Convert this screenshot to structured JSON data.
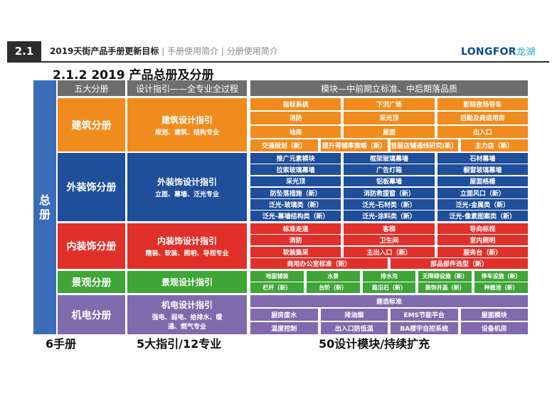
{
  "header": {
    "section_number": "2.1",
    "crumb_active": "2019天街产品手册更新目标",
    "crumb_rest": "| 手册使用简介 | 分册使用简介",
    "logo_text": "LONGFOR",
    "logo_cn": "龙湖",
    "page_title": "2.1.2 2019 产品总册及分册"
  },
  "side_label": "总册",
  "column_headers": [
    "五大分册",
    "设计指引——全专业全过程",
    "模块—中前期立标准、中后期落品质"
  ],
  "colors": {
    "architecture": "#f08c1e",
    "facade": "#1f4e9a",
    "interior": "#e0302a",
    "landscape": "#3fa536",
    "mep": "#7e6aac",
    "header_gray": "#6d6d6d",
    "side_blue": "#3b6cb8"
  },
  "bands": [
    {
      "category": "建筑分册",
      "guide_title": "建筑设计指引",
      "guide_sub": "规划、建筑、结构专业",
      "rows": [
        [
          "指标系统",
          "下沉广场",
          "影院夜场导车"
        ],
        [
          "消防",
          "采光顶",
          "后勤及商运用房"
        ],
        [
          "地库",
          "屋面",
          "出入口"
        ],
        [
          "交通规划（新）",
          "提升得铺率策略（新）",
          "首层店铺通线研究(新）",
          "主力店（新）"
        ]
      ]
    },
    {
      "category": "外装饰分册",
      "guide_title": "外装饰设计指引",
      "guide_sub": "立面、幕墙、泛光专业",
      "rows": [
        [
          "推广元素模块",
          "框架玻璃幕墙",
          "石材幕墙"
        ],
        [
          "拉索玻璃幕墙",
          "广告灯箱",
          "橱窗玻璃幕墙"
        ],
        [
          "采光顶",
          "铝板幕墙",
          "屋面格栅"
        ],
        [
          "防坠落措施（新）",
          "消防救援窗（新）",
          "立面风口（新）"
        ],
        [
          "泛光-玻璃类（新）",
          "泛光-石材类（新）",
          "泛光-金属类（新）"
        ],
        [
          "泛光-幕墙结构类（新）",
          "泛光-涂料类（新）",
          "泛光-像素图案类（新）"
        ]
      ]
    },
    {
      "category": "内装饰分册",
      "guide_title": "内装饰设计指引",
      "guide_sub": "精装、软装、照明、导视专业",
      "rows": [
        [
          "标准走道",
          "客梯",
          "导向标视"
        ],
        [
          "消防",
          "卫生间",
          "室内照明"
        ],
        [
          "软装集采",
          "主出入口（新）",
          "服务台（新）"
        ],
        [
          "商用办公室标准（新）",
          "部品部件选型（新）"
        ]
      ]
    },
    {
      "category": "景观分册",
      "guide_title": "景观设计指引",
      "guide_sub": "",
      "rows": [
        [
          "地面铺装",
          "水景",
          "排水沟",
          "无障碍设施（新）",
          "停车设施（新）"
        ],
        [
          "栏杆（新）",
          "台阶（新）",
          "路沿石（新）",
          "装饰井盖（新）",
          "种植池（新）"
        ]
      ]
    },
    {
      "category": "机电分册",
      "guide_title": "机电设计指引",
      "guide_sub": "强电、弱电、给排水、暖通、燃气专业",
      "rows": [
        [
          "建造标准"
        ],
        [
          "厨房废水",
          "排油烟",
          "EMS节能平台",
          "屋面模块"
        ],
        [
          "温度控制",
          "出入口防低温",
          "BA楼宇自控系统",
          "设备机房"
        ]
      ]
    }
  ],
  "footer": [
    "6手册",
    "5大指引/12专业",
    "50设计模块/持续扩充"
  ]
}
